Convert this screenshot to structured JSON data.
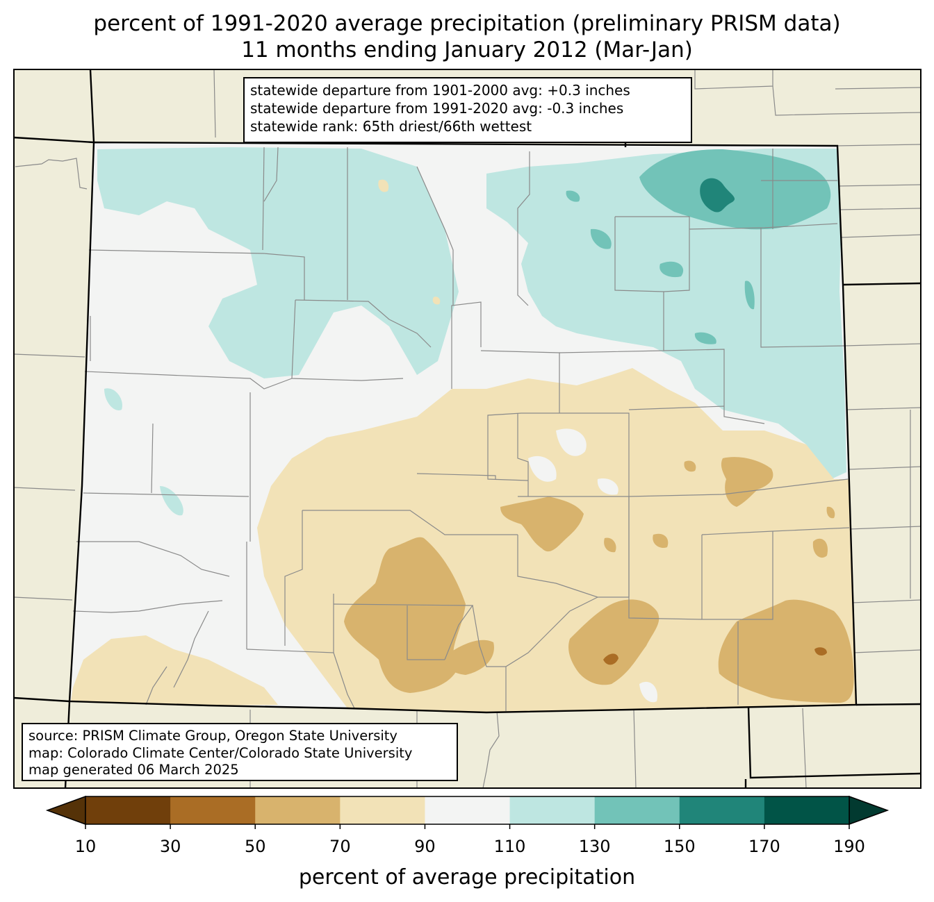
{
  "title": {
    "line1": "percent of 1991-2020 average precipitation (preliminary PRISM data)",
    "line2": "11 months ending January 2012 (Mar-Jan)"
  },
  "stats": {
    "line1": "statewide departure from 1901-2000 avg: +0.3 inches",
    "line2": "statewide departure from 1991-2020 avg: -0.3 inches",
    "line3": "statewide rank: 65th driest/66th wettest"
  },
  "source": {
    "line1": "source: PRISM Climate Group, Oregon State University",
    "line2": "map: Colorado Climate Center/Colorado State University",
    "line3": "map generated 06 March 2025"
  },
  "colorbar": {
    "label": "percent of average precipitation",
    "ticks": [
      "10",
      "30",
      "50",
      "70",
      "90",
      "110",
      "130",
      "150",
      "170",
      "190"
    ],
    "bins": [
      {
        "range": "10-30",
        "color": "#703f0b"
      },
      {
        "range": "30-50",
        "color": "#aa6d25"
      },
      {
        "range": "50-70",
        "color": "#d8b36d"
      },
      {
        "range": "70-90",
        "color": "#f2e2b7"
      },
      {
        "range": "90-110",
        "color": "#f3f4f3"
      },
      {
        "range": "110-130",
        "color": "#bee6e1"
      },
      {
        "range": "130-150",
        "color": "#72c3b8"
      },
      {
        "range": "150-170",
        "color": "#208579"
      },
      {
        "range": "170-190",
        "color": "#015447"
      }
    ],
    "under_color": "#553208",
    "over_color": "#023a30"
  },
  "map_colors": {
    "background": "#efedda",
    "near_normal": "#f3f4f3",
    "wet_light": "#bee6e1",
    "wet_mid": "#72c3b8",
    "wet_dark": "#208579",
    "dry_light": "#f2e2b7",
    "dry_mid": "#d8b36d",
    "dry_dark": "#aa6d25"
  }
}
